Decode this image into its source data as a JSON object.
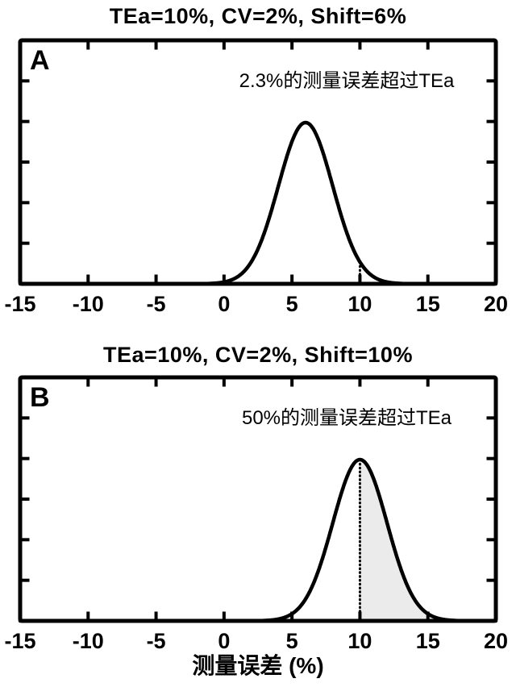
{
  "colors": {
    "curve": "#000000",
    "box": "#000000",
    "shade": "#ebebeb",
    "text": "#000000"
  },
  "chart_data": [
    {
      "type": "line",
      "panel_label": "A",
      "title": "TEa=10%, CV=2%, Shift=6%",
      "annotation": "2.3%的测量误差超过TEa",
      "distribution": "normal",
      "mean": 6,
      "sd": 2,
      "xlim": [
        -15,
        20
      ],
      "x_ticks": [
        -15,
        -10,
        -5,
        0,
        5,
        10,
        15,
        20
      ],
      "xlabel": "",
      "tea_line_x": 10,
      "pct_beyond_tea": 2.3,
      "shaded_region": null,
      "grid": false,
      "legend": false
    },
    {
      "type": "line",
      "panel_label": "B",
      "title": "TEa=10%, CV=2%, Shift=10%",
      "annotation": "50%的测量误差超过TEa",
      "distribution": "normal",
      "mean": 10,
      "sd": 2,
      "xlim": [
        -15,
        20
      ],
      "x_ticks": [
        -15,
        -10,
        -5,
        0,
        5,
        10,
        15,
        20
      ],
      "xlabel": "测量误差 (%)",
      "tea_line_x": 10,
      "pct_beyond_tea": 50,
      "shaded_region": {
        "from": 10,
        "to": 20
      },
      "grid": false,
      "legend": false
    }
  ]
}
